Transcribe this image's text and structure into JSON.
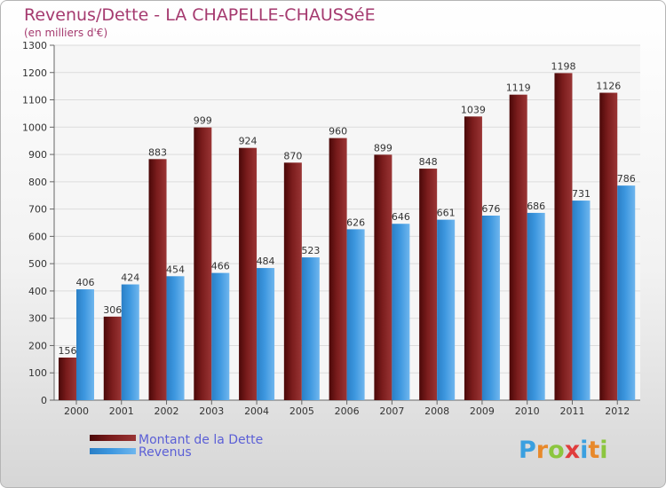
{
  "chart_data": {
    "type": "bar",
    "title": "Revenus/Dette - LA CHAPELLE-CHAUSSéE",
    "subtitle": "(en milliers d'€)",
    "categories": [
      "2000",
      "2001",
      "2002",
      "2003",
      "2004",
      "2005",
      "2006",
      "2007",
      "2008",
      "2009",
      "2010",
      "2011",
      "2012"
    ],
    "series": [
      {
        "name": "Montant de la Dette",
        "color": "#7a1c1c",
        "values": [
          156,
          306,
          883,
          999,
          924,
          870,
          960,
          899,
          848,
          1039,
          1119,
          1198,
          1126
        ]
      },
      {
        "name": "Revenus",
        "color": "#3d97df",
        "values": [
          406,
          424,
          454,
          466,
          484,
          523,
          626,
          646,
          661,
          676,
          686,
          731,
          786
        ]
      }
    ],
    "ylim": [
      0,
      1300
    ],
    "yticks": [
      0,
      100,
      200,
      300,
      400,
      500,
      600,
      700,
      800,
      900,
      1000,
      1100,
      1200,
      1300
    ],
    "grid": true,
    "legend_position": "bottom-left"
  },
  "logo": {
    "letters": [
      "P",
      "r",
      "o",
      "x",
      "i",
      "t",
      "i"
    ],
    "colors": [
      "#3aa0e0",
      "#e8892b",
      "#8cc63f",
      "#e03c3c",
      "#3aa0e0",
      "#e8892b",
      "#8cc63f"
    ]
  }
}
